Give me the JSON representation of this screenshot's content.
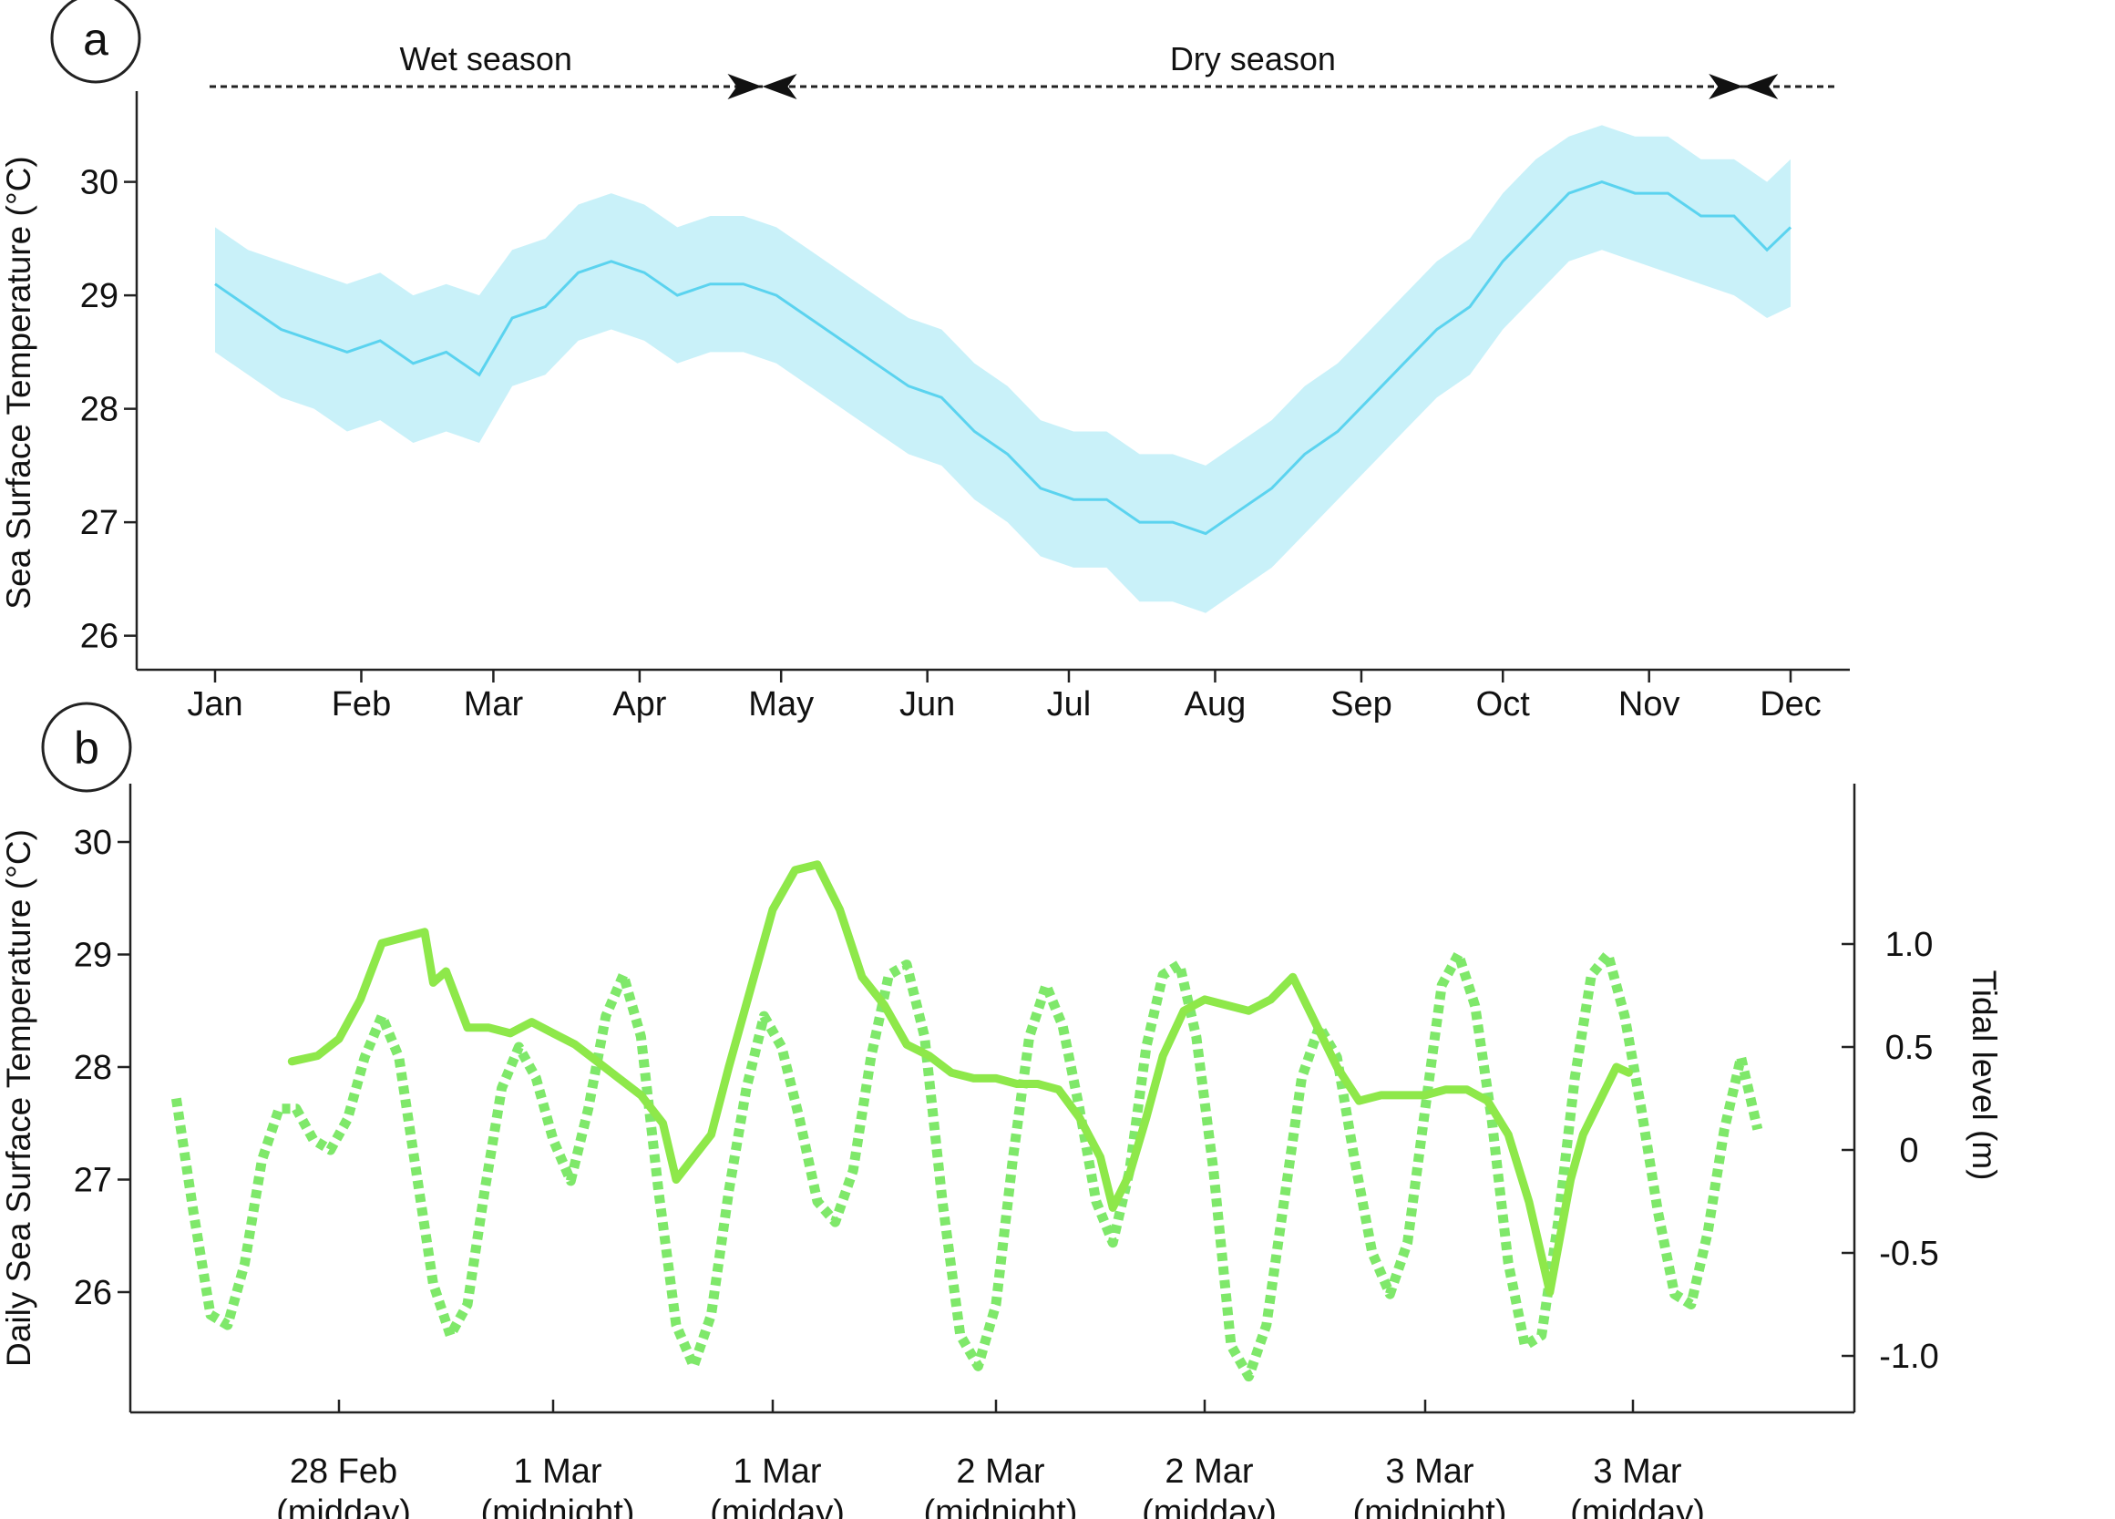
{
  "chart_data": [
    {
      "panel_label": "a",
      "type": "line",
      "ylabel": "Sea Surface Temperature (°C)",
      "xlabel": "",
      "ylim": [
        25.7,
        30.8
      ],
      "yticks": [
        26,
        27,
        28,
        29,
        30
      ],
      "x_ticks": [
        {
          "label": "Jan",
          "day": 0
        },
        {
          "label": "Feb",
          "day": 31
        },
        {
          "label": "Mar",
          "day": 59
        },
        {
          "label": "Apr",
          "day": 90
        },
        {
          "label": "May",
          "day": 120
        },
        {
          "label": "Jun",
          "day": 151
        },
        {
          "label": "Jul",
          "day": 181
        },
        {
          "label": "Aug",
          "day": 212
        },
        {
          "label": "Sep",
          "day": 243
        },
        {
          "label": "Oct",
          "day": 273
        },
        {
          "label": "Nov",
          "day": 304
        },
        {
          "label": "Dec",
          "day": 334
        }
      ],
      "seasons": [
        {
          "label": "Wet season",
          "from_day": 0,
          "to_day": 116
        },
        {
          "label": "Dry season",
          "from_day": 116,
          "to_day": 324
        }
      ],
      "series": [
        {
          "color": "#5bd3ef",
          "band_color": "#c9f1f9",
          "x_days": [
            0,
            7,
            14,
            21,
            28,
            35,
            42,
            49,
            56,
            63,
            70,
            77,
            84,
            91,
            98,
            105,
            112,
            119,
            126,
            133,
            140,
            147,
            154,
            161,
            168,
            175,
            182,
            189,
            196,
            203,
            210,
            217,
            224,
            231,
            238,
            245,
            252,
            259,
            266,
            273,
            280,
            287,
            294,
            301,
            308,
            315,
            322,
            329,
            334
          ],
          "mean": [
            29.1,
            28.9,
            28.7,
            28.6,
            28.5,
            28.6,
            28.4,
            28.5,
            28.3,
            28.8,
            28.9,
            29.2,
            29.3,
            29.2,
            29.0,
            29.1,
            29.1,
            29.0,
            28.8,
            28.6,
            28.4,
            28.2,
            28.1,
            27.8,
            27.6,
            27.3,
            27.2,
            27.2,
            27.0,
            27.0,
            26.9,
            27.1,
            27.3,
            27.6,
            27.8,
            28.1,
            28.4,
            28.7,
            28.9,
            29.3,
            29.6,
            29.9,
            30.0,
            29.9,
            29.9,
            29.7,
            29.7,
            29.4,
            29.6
          ],
          "lower": [
            28.5,
            28.3,
            28.1,
            28.0,
            27.8,
            27.9,
            27.7,
            27.8,
            27.7,
            28.2,
            28.3,
            28.6,
            28.7,
            28.6,
            28.4,
            28.5,
            28.5,
            28.4,
            28.2,
            28.0,
            27.8,
            27.6,
            27.5,
            27.2,
            27.0,
            26.7,
            26.6,
            26.6,
            26.3,
            26.3,
            26.2,
            26.4,
            26.6,
            26.9,
            27.2,
            27.5,
            27.8,
            28.1,
            28.3,
            28.7,
            29.0,
            29.3,
            29.4,
            29.3,
            29.2,
            29.1,
            29.0,
            28.8,
            28.9
          ],
          "upper": [
            29.6,
            29.4,
            29.3,
            29.2,
            29.1,
            29.2,
            29.0,
            29.1,
            29.0,
            29.4,
            29.5,
            29.8,
            29.9,
            29.8,
            29.6,
            29.7,
            29.7,
            29.6,
            29.4,
            29.2,
            29.0,
            28.8,
            28.7,
            28.4,
            28.2,
            27.9,
            27.8,
            27.8,
            27.6,
            27.6,
            27.5,
            27.7,
            27.9,
            28.2,
            28.4,
            28.7,
            29.0,
            29.3,
            29.5,
            29.9,
            30.2,
            30.4,
            30.5,
            30.4,
            30.4,
            30.2,
            30.2,
            30.0,
            30.2
          ]
        }
      ]
    },
    {
      "panel_label": "b",
      "type": "line",
      "ylabel": "Daily Sea Surface Temperature (°C)",
      "y2label": "Tidal level (m)",
      "ylim": [
        25.1,
        30.4
      ],
      "yticks": [
        26,
        27,
        28,
        29,
        30
      ],
      "y2lim": [
        -1.25,
        1.6
      ],
      "y2ticks": [
        1.0,
        0.5,
        0,
        -0.5,
        -1.0
      ],
      "y2tick_labels": [
        "1.0",
        "0.5",
        "0",
        "-0.5",
        "-1.0"
      ],
      "xlim": [
        -0.4,
        3.3
      ],
      "x_ticks": [
        {
          "label": "28 Feb",
          "sub": "(midday)",
          "t": 0.0
        },
        {
          "label": "1 Mar",
          "sub": "(midnight)",
          "t": 0.5
        },
        {
          "label": "1 Mar",
          "sub": "(midday)",
          "t": 1.0
        },
        {
          "label": "2 Mar",
          "sub": "(midnight)",
          "t": 1.5
        },
        {
          "label": "2 Mar",
          "sub": "(midday)",
          "t": 2.0
        },
        {
          "label": "3 Mar",
          "sub": "(midnight)",
          "t": 2.5
        },
        {
          "label": "3 Mar",
          "sub": "(midday)",
          "t": 3.0
        }
      ],
      "series": [
        {
          "style": "solid-dots",
          "axis": "left",
          "color": "#8ee84a",
          "t": [
            -0.11,
            -0.05,
            0.0,
            0.05,
            0.1,
            0.15,
            0.2,
            0.22,
            0.25,
            0.3,
            0.35,
            0.4,
            0.45,
            0.5,
            0.55,
            0.6,
            0.65,
            0.7,
            0.75,
            0.78,
            0.82,
            0.86,
            0.9,
            0.95,
            1.0,
            1.05,
            1.1,
            1.15,
            1.2,
            1.25,
            1.3,
            1.35,
            1.4,
            1.45,
            1.5,
            1.55,
            1.6,
            1.65,
            1.7,
            1.75,
            1.78,
            1.82,
            1.86,
            1.9,
            1.95,
            2.0,
            2.05,
            2.1,
            2.15,
            2.2,
            2.25,
            2.3,
            2.35,
            2.4,
            2.45,
            2.5,
            2.55,
            2.6,
            2.65,
            2.7,
            2.75,
            2.8,
            2.85,
            2.88,
            2.92,
            2.96,
            2.99
          ],
          "values": [
            28.05,
            28.1,
            28.25,
            28.6,
            29.1,
            29.15,
            29.2,
            28.75,
            28.85,
            28.35,
            28.35,
            28.3,
            28.4,
            28.3,
            28.2,
            28.05,
            27.9,
            27.75,
            27.5,
            27.0,
            27.2,
            27.4,
            28.0,
            28.7,
            29.4,
            29.75,
            29.8,
            29.4,
            28.8,
            28.55,
            28.2,
            28.1,
            27.95,
            27.9,
            27.9,
            27.85,
            27.85,
            27.8,
            27.55,
            27.2,
            26.75,
            27.05,
            27.55,
            28.1,
            28.5,
            28.6,
            28.55,
            28.5,
            28.6,
            28.8,
            28.4,
            28.0,
            27.7,
            27.75,
            27.75,
            27.75,
            27.8,
            27.8,
            27.7,
            27.4,
            26.8,
            26.0,
            27.0,
            27.4,
            27.7,
            28.0,
            27.95
          ]
        },
        {
          "style": "dashed",
          "axis": "right",
          "color": "#7fe86a",
          "t": [
            -0.38,
            -0.34,
            -0.3,
            -0.26,
            -0.22,
            -0.18,
            -0.14,
            -0.1,
            -0.06,
            -0.02,
            0.02,
            0.06,
            0.1,
            0.14,
            0.18,
            0.22,
            0.26,
            0.3,
            0.34,
            0.38,
            0.42,
            0.46,
            0.5,
            0.54,
            0.58,
            0.62,
            0.66,
            0.7,
            0.74,
            0.78,
            0.82,
            0.86,
            0.9,
            0.94,
            0.98,
            1.02,
            1.06,
            1.1,
            1.14,
            1.18,
            1.22,
            1.26,
            1.3,
            1.34,
            1.38,
            1.42,
            1.46,
            1.5,
            1.54,
            1.58,
            1.62,
            1.66,
            1.7,
            1.74,
            1.78,
            1.82,
            1.86,
            1.9,
            1.94,
            1.98,
            2.02,
            2.06,
            2.1,
            2.14,
            2.18,
            2.22,
            2.26,
            2.3,
            2.34,
            2.38,
            2.42,
            2.46,
            2.5,
            2.54,
            2.58,
            2.62,
            2.66,
            2.7,
            2.74,
            2.78,
            2.82,
            2.86,
            2.9,
            2.94,
            2.98,
            3.02,
            3.06,
            3.1,
            3.14,
            3.18,
            3.22,
            3.26,
            3.3
          ],
          "values": [
            0.25,
            -0.3,
            -0.8,
            -0.85,
            -0.55,
            -0.05,
            0.2,
            0.2,
            0.05,
            0.0,
            0.15,
            0.45,
            0.65,
            0.45,
            -0.1,
            -0.65,
            -0.9,
            -0.75,
            -0.2,
            0.3,
            0.5,
            0.35,
            0.05,
            -0.15,
            0.2,
            0.65,
            0.85,
            0.55,
            -0.2,
            -0.85,
            -1.05,
            -0.8,
            -0.2,
            0.3,
            0.65,
            0.5,
            0.15,
            -0.25,
            -0.35,
            -0.1,
            0.45,
            0.85,
            0.9,
            0.55,
            -0.25,
            -0.9,
            -1.05,
            -0.75,
            -0.05,
            0.55,
            0.8,
            0.6,
            0.2,
            -0.25,
            -0.45,
            -0.1,
            0.5,
            0.85,
            0.9,
            0.55,
            -0.1,
            -0.95,
            -1.1,
            -0.85,
            -0.25,
            0.35,
            0.6,
            0.45,
            -0.05,
            -0.5,
            -0.7,
            -0.45,
            0.2,
            0.8,
            0.95,
            0.7,
            0.15,
            -0.55,
            -0.95,
            -0.9,
            -0.35,
            0.35,
            0.85,
            0.95,
            0.65,
            0.2,
            -0.3,
            -0.7,
            -0.75,
            -0.4,
            0.1,
            0.45,
            0.1
          ]
        }
      ]
    }
  ]
}
